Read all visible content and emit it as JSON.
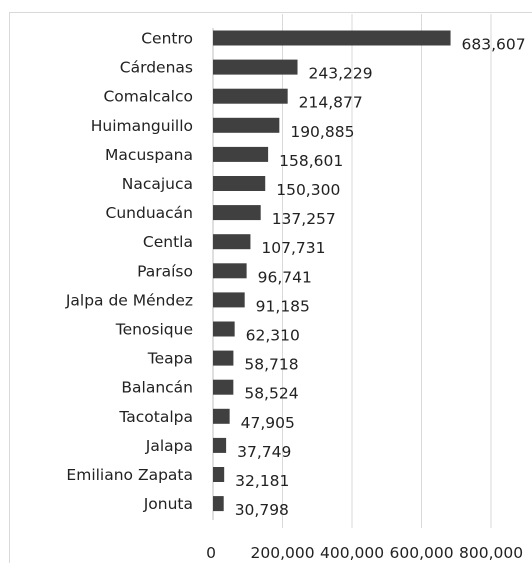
{
  "chart_data": {
    "type": "bar",
    "orientation": "horizontal",
    "categories": [
      "Centro",
      "Cárdenas",
      "Comalcalco",
      "Huimanguillo",
      "Macuspana",
      "Nacajuca",
      "Cunduacán",
      "Centla",
      "Paraíso",
      "Jalpa de Méndez",
      "Tenosique",
      "Teapa",
      "Balancán",
      "Tacotalpa",
      "Jalapa",
      "Emiliano Zapata",
      "Jonuta"
    ],
    "values": [
      683607,
      243229,
      214877,
      190885,
      158601,
      150300,
      137257,
      107731,
      96741,
      91185,
      62310,
      58718,
      58524,
      47905,
      37749,
      32181,
      30798
    ],
    "value_labels": [
      "683,607",
      "243,229",
      "214,877",
      "190,885",
      "158,601",
      "150,300",
      "137,257",
      "107,731",
      "96,741",
      "91,185",
      "62,310",
      "58,718",
      "58,524",
      "47,905",
      "37,749",
      "32,181",
      "30,798"
    ],
    "xlim": [
      0,
      800000
    ],
    "x_ticks": [
      0,
      200000,
      400000,
      600000,
      800000
    ],
    "x_tick_labels": [
      "0",
      "200,000",
      "400,000",
      "600,000",
      "800,000"
    ],
    "grid": true,
    "bar_color": "#404040",
    "grid_color": "#d9d9d9"
  }
}
